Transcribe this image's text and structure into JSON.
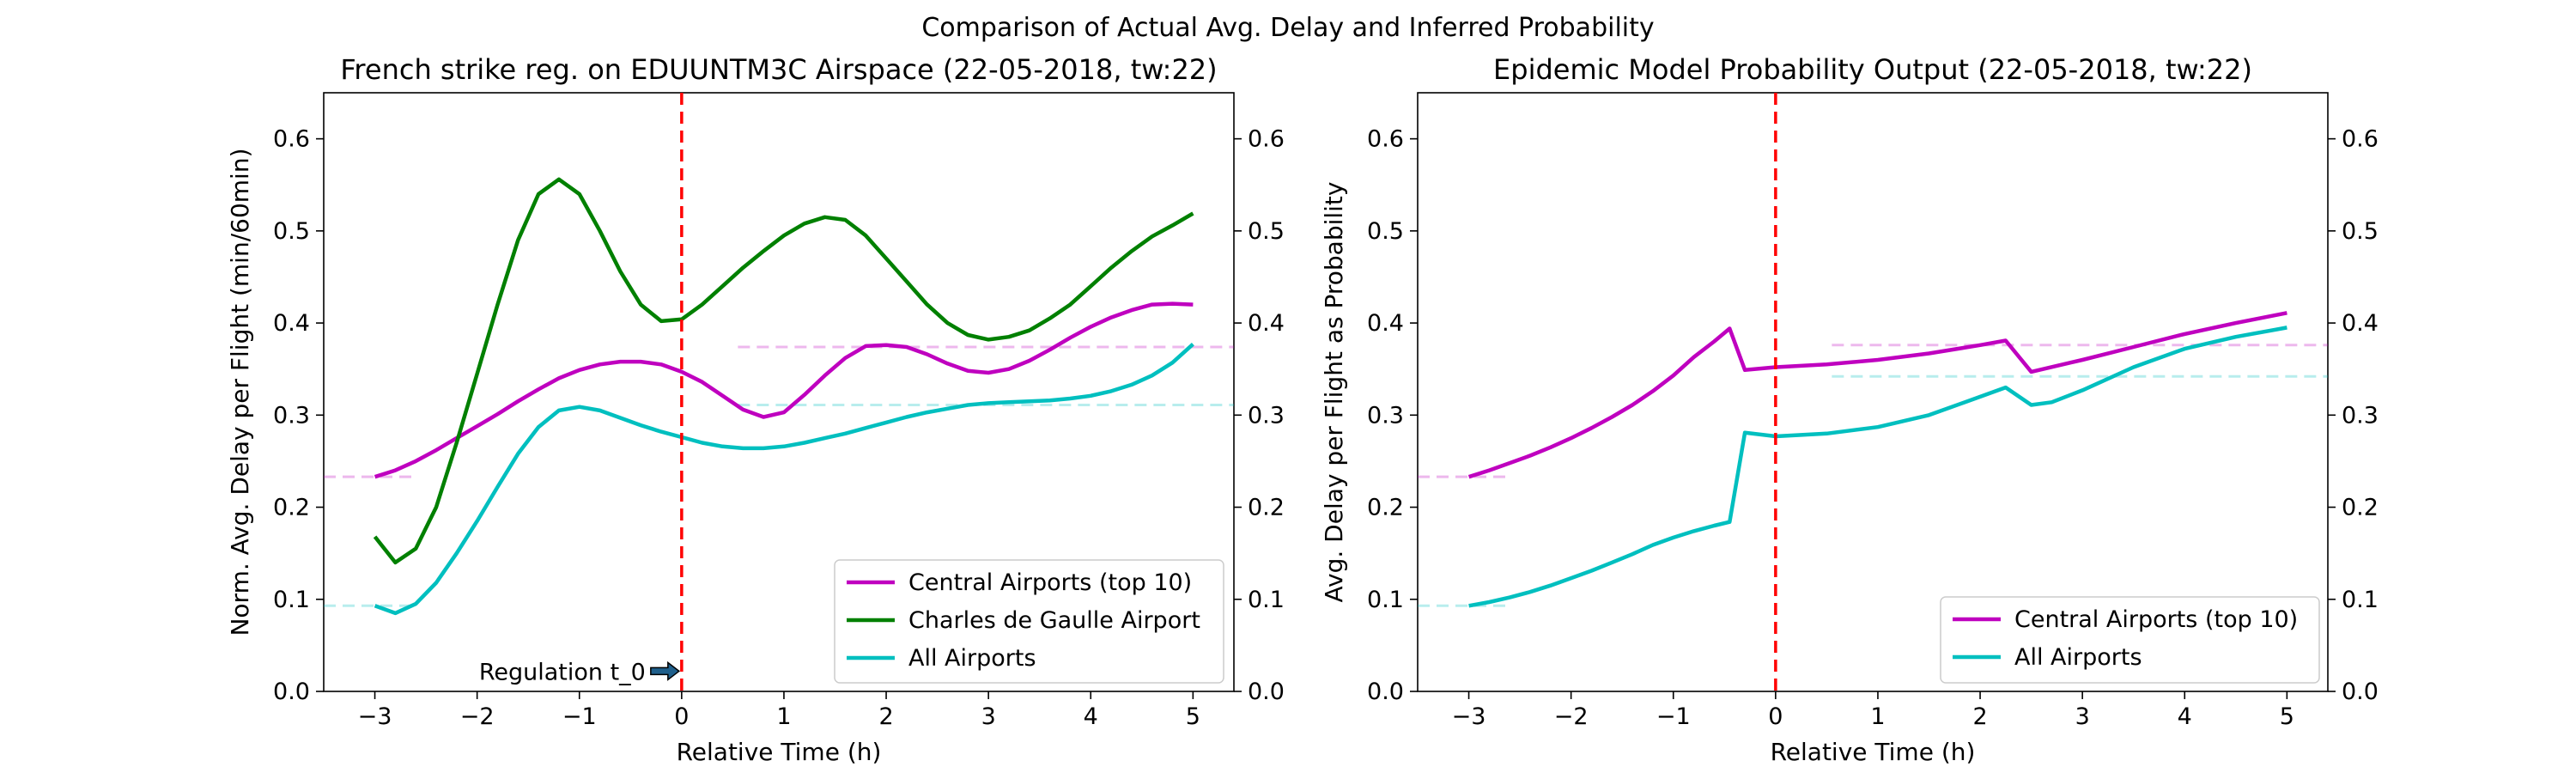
{
  "figure": {
    "suptitle": "Comparison of Actual Avg. Delay and Inferred Probability"
  },
  "chart_data": [
    {
      "type": "line",
      "title": "French strike reg. on EDUUNTM3C Airspace (22-05-2018, tw:22)",
      "xlabel": "Relative Time (h)",
      "ylabel": "Norm. Avg. Delay per Flight (min/60min)",
      "xlim": [
        -3.5,
        5.4
      ],
      "ylim": [
        0,
        0.65
      ],
      "xticks": [
        -3,
        -2,
        -1,
        0,
        1,
        2,
        3,
        4,
        5
      ],
      "xtick_labels": [
        "−3",
        "−2",
        "−1",
        "0",
        "1",
        "2",
        "3",
        "4",
        "5"
      ],
      "yticks": [
        0.0,
        0.1,
        0.2,
        0.3,
        0.4,
        0.5,
        0.6
      ],
      "ytick_labels": [
        "0.0",
        "0.1",
        "0.2",
        "0.3",
        "0.4",
        "0.5",
        "0.6"
      ],
      "right_axis_duplicate": true,
      "grid": false,
      "legend_position": "bottom-right",
      "regulation": {
        "x": 0,
        "color": "#ff0000",
        "label": "Regulation t_0"
      },
      "series": [
        {
          "name": "Central Airports (top 10)",
          "color": "#bf00bf",
          "x": [
            -3,
            -2.8,
            -2.6,
            -2.4,
            -2.2,
            -2,
            -1.8,
            -1.6,
            -1.4,
            -1.2,
            -1,
            -0.8,
            -0.6,
            -0.4,
            -0.2,
            0,
            0.2,
            0.4,
            0.6,
            0.8,
            1,
            1.2,
            1.4,
            1.6,
            1.8,
            2,
            2.2,
            2.4,
            2.6,
            2.8,
            3,
            3.2,
            3.4,
            3.6,
            3.8,
            4,
            4.2,
            4.4,
            4.6,
            4.8,
            5
          ],
          "y": [
            0.233,
            0.24,
            0.25,
            0.262,
            0.275,
            0.288,
            0.301,
            0.315,
            0.328,
            0.34,
            0.349,
            0.355,
            0.358,
            0.358,
            0.355,
            0.347,
            0.336,
            0.321,
            0.306,
            0.298,
            0.303,
            0.322,
            0.343,
            0.362,
            0.375,
            0.376,
            0.374,
            0.366,
            0.356,
            0.348,
            0.346,
            0.35,
            0.359,
            0.371,
            0.384,
            0.396,
            0.406,
            0.414,
            0.42,
            0.421,
            0.42
          ]
        },
        {
          "name": "Charles de Gaulle Airport",
          "color": "#008000",
          "x": [
            -3,
            -2.8,
            -2.6,
            -2.4,
            -2.2,
            -2,
            -1.8,
            -1.6,
            -1.4,
            -1.2,
            -1,
            -0.8,
            -0.6,
            -0.4,
            -0.2,
            0,
            0.2,
            0.4,
            0.6,
            0.8,
            1,
            1.2,
            1.4,
            1.6,
            1.8,
            2,
            2.2,
            2.4,
            2.6,
            2.8,
            3,
            3.2,
            3.4,
            3.6,
            3.8,
            4,
            4.2,
            4.4,
            4.6,
            4.8,
            5
          ],
          "y": [
            0.168,
            0.14,
            0.155,
            0.2,
            0.27,
            0.345,
            0.42,
            0.49,
            0.54,
            0.556,
            0.54,
            0.5,
            0.456,
            0.42,
            0.402,
            0.404,
            0.42,
            0.44,
            0.46,
            0.478,
            0.495,
            0.508,
            0.515,
            0.512,
            0.495,
            0.47,
            0.445,
            0.42,
            0.4,
            0.387,
            0.382,
            0.385,
            0.392,
            0.405,
            0.42,
            0.44,
            0.46,
            0.478,
            0.494,
            0.506,
            0.519
          ]
        },
        {
          "name": "All Airports",
          "color": "#00bfbf",
          "x": [
            -3,
            -2.8,
            -2.6,
            -2.4,
            -2.2,
            -2,
            -1.8,
            -1.6,
            -1.4,
            -1.2,
            -1,
            -0.8,
            -0.6,
            -0.4,
            -0.2,
            0,
            0.2,
            0.4,
            0.6,
            0.8,
            1,
            1.2,
            1.4,
            1.6,
            1.8,
            2,
            2.2,
            2.4,
            2.6,
            2.8,
            3,
            3.2,
            3.4,
            3.6,
            3.8,
            4,
            4.2,
            4.4,
            4.6,
            4.8,
            5
          ],
          "y": [
            0.093,
            0.085,
            0.095,
            0.118,
            0.15,
            0.185,
            0.222,
            0.258,
            0.287,
            0.305,
            0.309,
            0.305,
            0.297,
            0.289,
            0.282,
            0.276,
            0.27,
            0.266,
            0.264,
            0.264,
            0.266,
            0.27,
            0.275,
            0.28,
            0.286,
            0.292,
            0.298,
            0.303,
            0.307,
            0.311,
            0.313,
            0.314,
            0.315,
            0.316,
            0.318,
            0.321,
            0.326,
            0.333,
            0.343,
            0.357,
            0.377
          ]
        }
      ],
      "reference_lines": [
        {
          "color": "#bf00bf",
          "y": 0.233,
          "x": [
            -3.5,
            -2.6
          ]
        },
        {
          "color": "#bf00bf",
          "y": 0.374,
          "x": [
            0.55,
            5.4
          ]
        },
        {
          "color": "#00bfbf",
          "y": 0.093,
          "x": [
            -3.5,
            -2.6
          ]
        },
        {
          "color": "#00bfbf",
          "y": 0.311,
          "x": [
            0.55,
            5.4
          ]
        }
      ]
    },
    {
      "type": "line",
      "title": "Epidemic Model Probability Output (22-05-2018, tw:22)",
      "xlabel": "Relative Time (h)",
      "ylabel": "Avg. Delay per Flight as Probability",
      "xlim": [
        -3.5,
        5.4
      ],
      "ylim": [
        0,
        0.65
      ],
      "xticks": [
        -3,
        -2,
        -1,
        0,
        1,
        2,
        3,
        4,
        5
      ],
      "xtick_labels": [
        "−3",
        "−2",
        "−1",
        "0",
        "1",
        "2",
        "3",
        "4",
        "5"
      ],
      "yticks": [
        0.0,
        0.1,
        0.2,
        0.3,
        0.4,
        0.5,
        0.6
      ],
      "ytick_labels": [
        "0.0",
        "0.1",
        "0.2",
        "0.3",
        "0.4",
        "0.5",
        "0.6"
      ],
      "right_axis_duplicate": true,
      "grid": false,
      "legend_position": "bottom-right",
      "regulation": {
        "x": 0,
        "color": "#ff0000"
      },
      "series": [
        {
          "name": "Central Airports (top 10)",
          "color": "#bf00bf",
          "x": [
            -3,
            -2.8,
            -2.6,
            -2.4,
            -2.2,
            -2,
            -1.8,
            -1.6,
            -1.4,
            -1.2,
            -1,
            -0.8,
            -0.6,
            -0.45,
            -0.3,
            0,
            0.5,
            1,
            1.5,
            2,
            2.25,
            2.5,
            3,
            3.5,
            4,
            4.5,
            5
          ],
          "y": [
            0.233,
            0.24,
            0.248,
            0.256,
            0.265,
            0.275,
            0.286,
            0.298,
            0.311,
            0.326,
            0.343,
            0.363,
            0.38,
            0.394,
            0.349,
            0.352,
            0.355,
            0.36,
            0.367,
            0.376,
            0.381,
            0.347,
            0.36,
            0.374,
            0.388,
            0.4,
            0.411
          ]
        },
        {
          "name": "All Airports",
          "color": "#00bfbf",
          "x": [
            -3,
            -2.8,
            -2.6,
            -2.4,
            -2.2,
            -2,
            -1.8,
            -1.6,
            -1.4,
            -1.2,
            -1,
            -0.8,
            -0.6,
            -0.45,
            -0.3,
            0,
            0.5,
            1,
            1.5,
            2,
            2.25,
            2.5,
            2.7,
            3,
            3.5,
            4,
            4.5,
            5
          ],
          "y": [
            0.093,
            0.097,
            0.102,
            0.108,
            0.115,
            0.123,
            0.131,
            0.14,
            0.149,
            0.159,
            0.167,
            0.174,
            0.18,
            0.184,
            0.281,
            0.277,
            0.28,
            0.287,
            0.3,
            0.32,
            0.33,
            0.311,
            0.314,
            0.327,
            0.352,
            0.372,
            0.385,
            0.395
          ]
        }
      ],
      "reference_lines": [
        {
          "color": "#bf00bf",
          "y": 0.233,
          "x": [
            -3.5,
            -2.6
          ]
        },
        {
          "color": "#bf00bf",
          "y": 0.376,
          "x": [
            0.55,
            5.4
          ]
        },
        {
          "color": "#00bfbf",
          "y": 0.093,
          "x": [
            -3.5,
            -2.6
          ]
        },
        {
          "color": "#00bfbf",
          "y": 0.342,
          "x": [
            0.55,
            5.4
          ]
        }
      ]
    }
  ]
}
